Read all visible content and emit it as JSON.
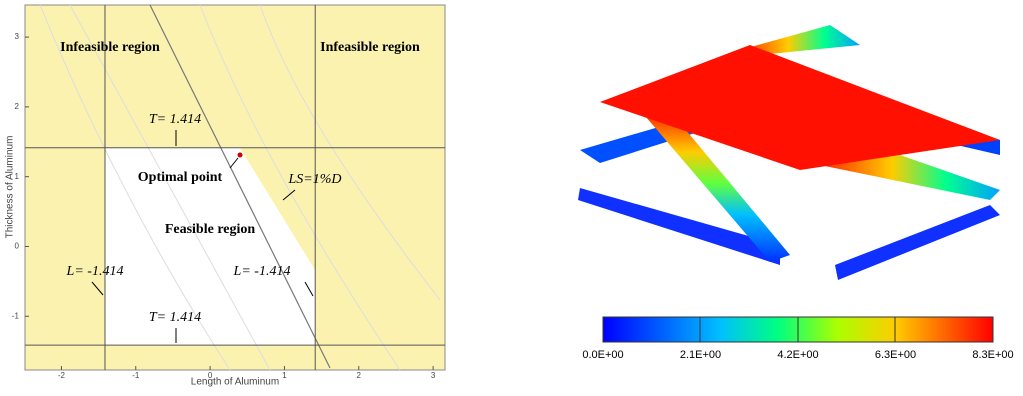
{
  "left_plot": {
    "xlabel": "Length of Aluminum",
    "ylabel": "Thickness of Aluminum",
    "xlim": [
      -2.49,
      3.16
    ],
    "ylim": [
      -1.77,
      3.46
    ],
    "xticks": [
      -2,
      -1,
      0,
      1,
      2,
      3
    ],
    "yticks": [
      -1,
      0,
      1,
      2,
      3
    ],
    "constraint_x": [
      -1.414,
      1.414
    ],
    "constraint_y": [
      -1.414,
      1.414
    ],
    "regions": [
      "Infeasible region",
      "Infeasible region",
      "Feasible region",
      "Optimal point"
    ],
    "annotations": [
      "T= 1.414",
      "T= 1.414",
      "L= -1.414",
      "L= -1.414",
      "LS=1%D"
    ]
  },
  "right_plot": {
    "colorbar_labels": [
      "0.0E+00",
      "2.1E+00",
      "4.2E+00",
      "6.3E+00",
      "8.3E+00"
    ]
  }
}
